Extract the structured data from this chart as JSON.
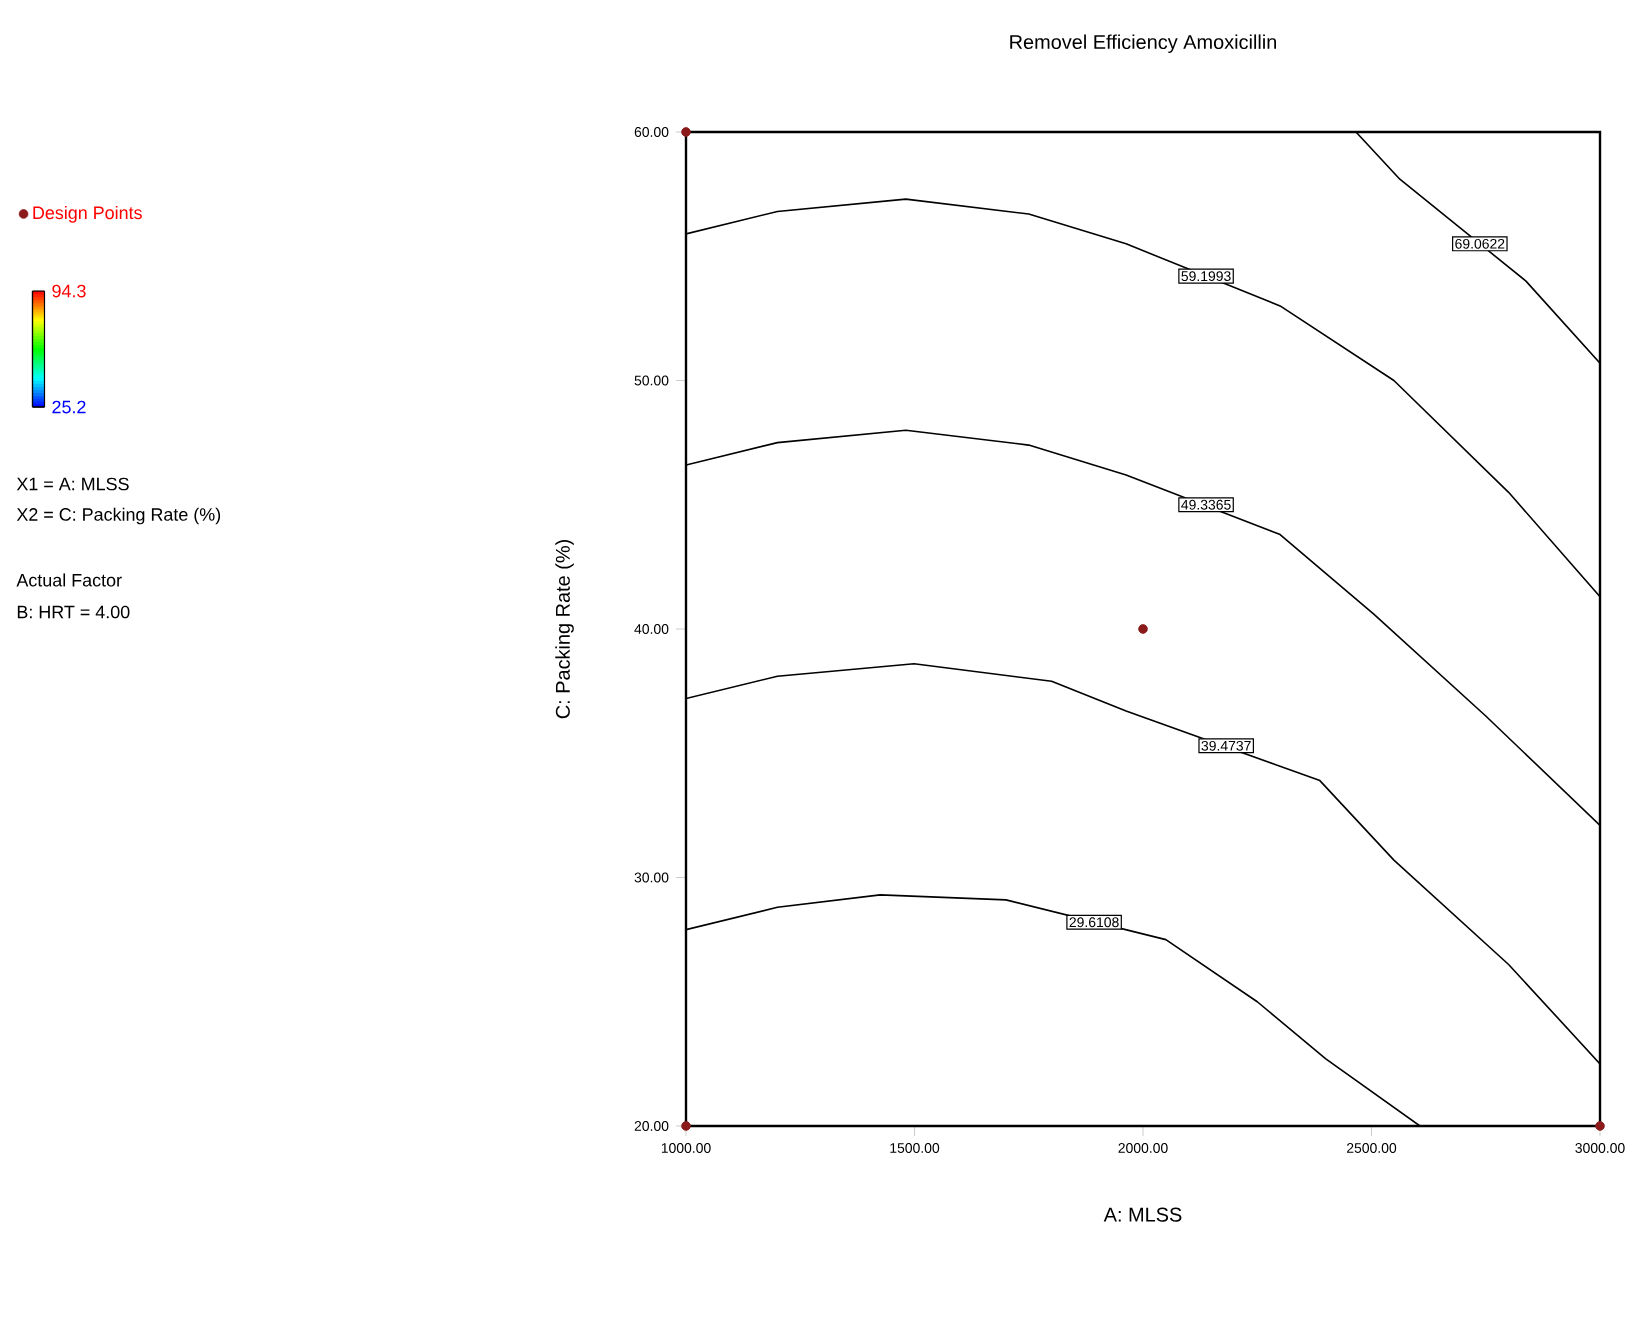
{
  "chart_data": {
    "type": "line",
    "title": "Removel Efficiency Amoxicillin",
    "xlabel": "A: MLSS",
    "ylabel": "C: Packing Rate (%)",
    "xlim": [
      1000,
      3000
    ],
    "ylim": [
      20,
      60
    ],
    "xticks": [
      {
        "value": 1000,
        "label": "1000.00"
      },
      {
        "value": 1500,
        "label": "1500.00"
      },
      {
        "value": 2000,
        "label": "2000.00"
      },
      {
        "value": 2500,
        "label": "2500.00"
      },
      {
        "value": 3000,
        "label": "3000.00"
      }
    ],
    "yticks": [
      {
        "value": 20,
        "label": "20.00"
      },
      {
        "value": 30,
        "label": "30.00"
      },
      {
        "value": 40,
        "label": "40.00"
      },
      {
        "value": 50,
        "label": "50.00"
      },
      {
        "value": 60,
        "label": "60.00"
      }
    ],
    "clim": [
      25.2,
      94.3
    ],
    "cticks": [
      25.2,
      94.3
    ],
    "legend": "left",
    "series": [
      {
        "color": "#000000",
        "x": [
          1000,
          1200,
          1425,
          1700,
          2050,
          2250,
          2400,
          2606
        ],
        "values": [
          27.9,
          28.8,
          29.3,
          29.1,
          27.5,
          25.0,
          22.7,
          20
        ]
      },
      {
        "color": "#000000",
        "x": [
          1000,
          1200,
          1499,
          1800,
          1963,
          2387,
          2549,
          2800,
          3000
        ],
        "values": [
          37.2,
          38.1,
          38.6,
          37.9,
          36.7,
          33.9,
          30.7,
          26.5,
          22.5
        ]
      },
      {
        "color": "#000000",
        "x": [
          1000,
          1200,
          1481,
          1750,
          1963,
          2300,
          2505,
          2750,
          3000
        ],
        "values": [
          46.6,
          47.5,
          48.0,
          47.4,
          46.2,
          43.8,
          40.6,
          36.5,
          32.1
        ]
      },
      {
        "color": "#000000",
        "x": [
          1000,
          1200,
          1481,
          1750,
          1963,
          2300,
          2549,
          2800,
          3000
        ],
        "values": [
          55.9,
          56.8,
          57.3,
          56.7,
          55.5,
          53.0,
          50.0,
          45.5,
          41.3
        ]
      },
      {
        "color": "#000000",
        "x": [
          2466,
          2562,
          2838,
          3000
        ],
        "values": [
          60,
          58.1,
          54.0,
          50.7
        ]
      },
      {
        "type": "scatter",
        "name": "Design Points",
        "color": "#8b1a1a",
        "marker": "circle",
        "x": [
          1000,
          1000,
          2000,
          3000
        ],
        "values": [
          60,
          20,
          40,
          20
        ]
      }
    ],
    "annotations": [
      "X1 = A: MLSS",
      "X2 = C: Packing Rate (%)",
      "Actual Factor",
      "B: HRT = 4.00",
      {
        "text": "29.6108",
        "x": 1893,
        "y": 28.2
      },
      {
        "text": "39.4737",
        "x": 2182,
        "y": 35.3
      },
      {
        "text": "49.3365",
        "x": 2138,
        "y": 45.0
      },
      {
        "text": "59.1993",
        "x": 2138,
        "y": 54.2
      },
      {
        "text": "69.0622",
        "x": 2737,
        "y": 55.5
      }
    ]
  }
}
